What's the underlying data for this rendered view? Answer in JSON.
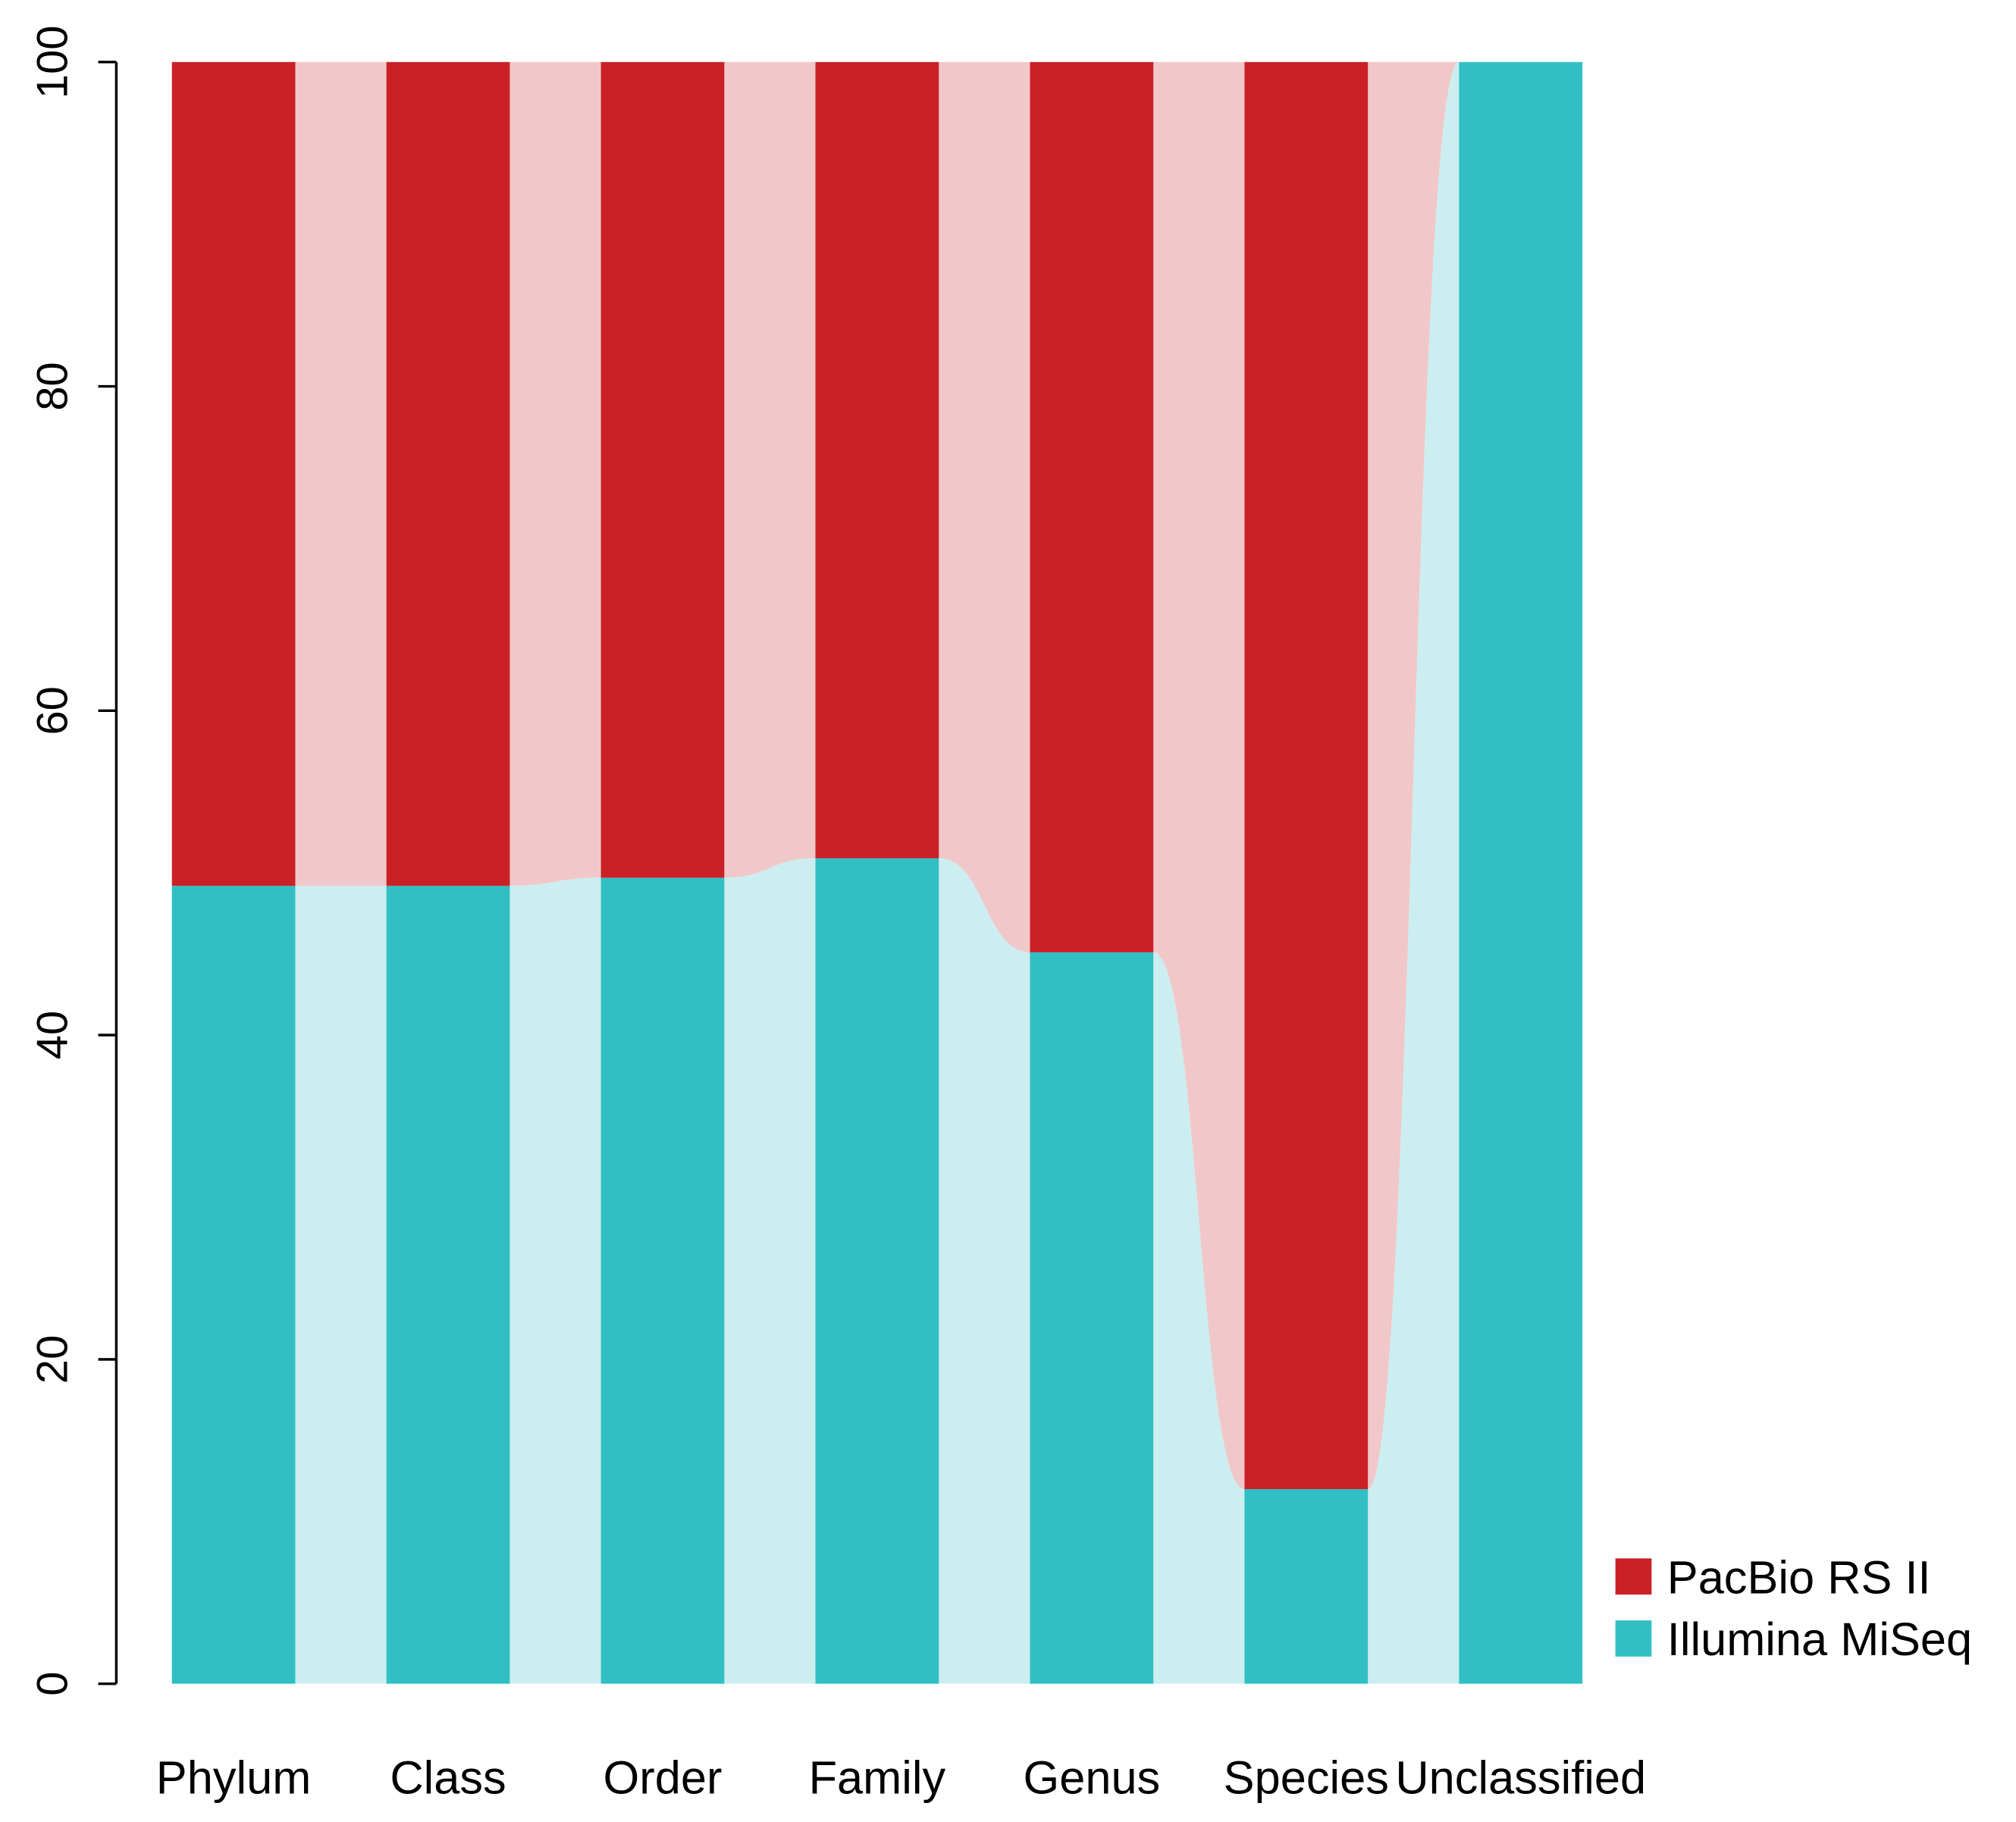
{
  "chart_data": {
    "type": "bar",
    "stacked": true,
    "title": "",
    "xlabel": "",
    "ylabel": "",
    "ylim": [
      0,
      100
    ],
    "yticks": [
      "0",
      "20",
      "40",
      "60",
      "80",
      "100"
    ],
    "categories": [
      "Phylum",
      "Class",
      "Order",
      "Family",
      "Genus",
      "Species",
      "Unclassified"
    ],
    "series": [
      {
        "name": "Illumina MiSeq",
        "color": "#31BFC5",
        "light_color": "#CCEEF0",
        "values": [
          49.2,
          49.2,
          49.7,
          50.9,
          45.1,
          12.0,
          100
        ]
      },
      {
        "name": "PacBio RS II",
        "color": "#CC2027",
        "light_color": "#F1C8CA",
        "values": [
          50.8,
          50.8,
          50.3,
          49.1,
          54.9,
          88.0,
          0
        ]
      }
    ],
    "legend": {
      "position": "bottom-right",
      "entries": [
        "PacBio RS II",
        "Illumina MiSeq"
      ]
    }
  }
}
